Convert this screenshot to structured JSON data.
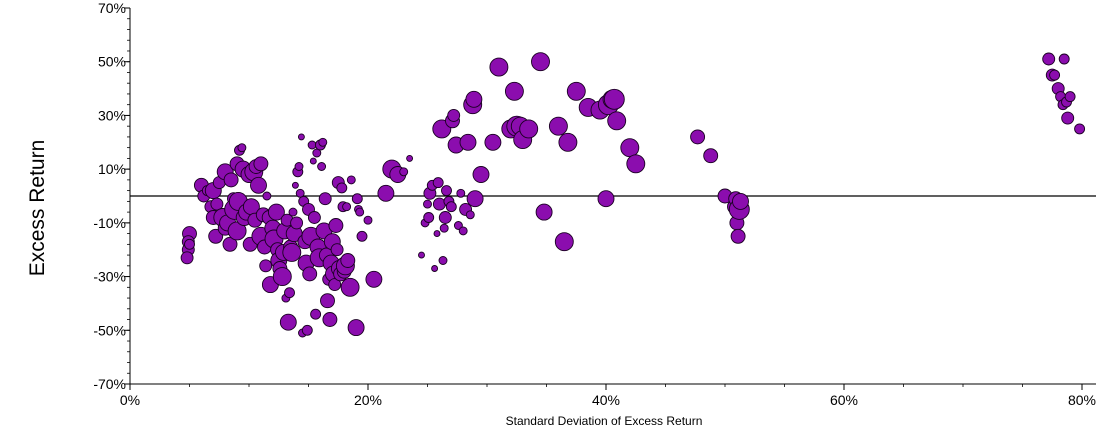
{
  "chart_data": {
    "type": "scatter",
    "title": "",
    "xlabel": "Standard Deviation of Excess Return",
    "ylabel": "Excess Return",
    "xlim": [
      0,
      0.8
    ],
    "ylim": [
      -0.7,
      0.7
    ],
    "x_ticks": [
      {
        "value": 0,
        "label": "0%"
      },
      {
        "value": 0.2,
        "label": "20%"
      },
      {
        "value": 0.4,
        "label": "40%"
      },
      {
        "value": 0.6,
        "label": "60%"
      },
      {
        "value": 0.8,
        "label": "80%"
      }
    ],
    "y_ticks": [
      {
        "value": -0.7,
        "label": "-70%"
      },
      {
        "value": -0.5,
        "label": "-50%"
      },
      {
        "value": -0.3,
        "label": "-30%"
      },
      {
        "value": -0.1,
        "label": "-10%"
      },
      {
        "value": 0.1,
        "label": "10%"
      },
      {
        "value": 0.3,
        "label": "30%"
      },
      {
        "value": 0.5,
        "label": "50%"
      },
      {
        "value": 0.7,
        "label": "70%"
      }
    ],
    "grid": false,
    "reference_line_y": 0,
    "marker_color": "#8B0DAE",
    "marker_edge_color": "#1a0022",
    "points": [
      [
        0.05,
        -0.14,
        7
      ],
      [
        0.049,
        -0.17,
        6
      ],
      [
        0.049,
        -0.2,
        6
      ],
      [
        0.048,
        -0.23,
        6
      ],
      [
        0.05,
        -0.18,
        5
      ],
      [
        0.06,
        0.04,
        7
      ],
      [
        0.062,
        0.0,
        6
      ],
      [
        0.065,
        0.02,
        5
      ],
      [
        0.068,
        -0.04,
        6
      ],
      [
        0.07,
        0.02,
        8
      ],
      [
        0.07,
        -0.08,
        7
      ],
      [
        0.072,
        -0.15,
        7
      ],
      [
        0.073,
        -0.03,
        6
      ],
      [
        0.075,
        0.05,
        6
      ],
      [
        0.078,
        -0.08,
        9
      ],
      [
        0.08,
        -0.12,
        7
      ],
      [
        0.08,
        0.09,
        8
      ],
      [
        0.082,
        -0.1,
        8
      ],
      [
        0.084,
        -0.18,
        7
      ],
      [
        0.085,
        0.06,
        7
      ],
      [
        0.087,
        -0.01,
        6
      ],
      [
        0.088,
        -0.05,
        10
      ],
      [
        0.09,
        0.12,
        7
      ],
      [
        0.09,
        -0.13,
        9
      ],
      [
        0.091,
        -0.02,
        9
      ],
      [
        0.092,
        0.17,
        5
      ],
      [
        0.094,
        0.18,
        4
      ],
      [
        0.095,
        0.1,
        8
      ],
      [
        0.096,
        -0.08,
        8
      ],
      [
        0.098,
        -0.06,
        8
      ],
      [
        0.1,
        0.08,
        8
      ],
      [
        0.101,
        -0.18,
        7
      ],
      [
        0.102,
        -0.04,
        8
      ],
      [
        0.104,
        0.09,
        9
      ],
      [
        0.105,
        -0.09,
        7
      ],
      [
        0.106,
        0.11,
        7
      ],
      [
        0.108,
        0.04,
        8
      ],
      [
        0.11,
        -0.15,
        9
      ],
      [
        0.11,
        0.12,
        7
      ],
      [
        0.112,
        -0.07,
        7
      ],
      [
        0.113,
        -0.19,
        7
      ],
      [
        0.114,
        -0.26,
        6
      ],
      [
        0.115,
        0.0,
        4
      ],
      [
        0.117,
        -0.08,
        7
      ],
      [
        0.118,
        -0.33,
        8
      ],
      [
        0.12,
        -0.12,
        8
      ],
      [
        0.121,
        -0.16,
        9
      ],
      [
        0.123,
        -0.06,
        8
      ],
      [
        0.124,
        -0.2,
        7
      ],
      [
        0.125,
        -0.24,
        8
      ],
      [
        0.126,
        -0.27,
        7
      ],
      [
        0.128,
        -0.3,
        9
      ],
      [
        0.129,
        -0.21,
        8
      ],
      [
        0.13,
        -0.13,
        8
      ],
      [
        0.131,
        -0.38,
        4
      ],
      [
        0.132,
        -0.09,
        6
      ],
      [
        0.133,
        -0.47,
        8
      ],
      [
        0.134,
        -0.36,
        5
      ],
      [
        0.135,
        -0.19,
        7
      ],
      [
        0.136,
        -0.21,
        9
      ],
      [
        0.137,
        -0.06,
        4
      ],
      [
        0.138,
        -0.14,
        8
      ],
      [
        0.139,
        0.04,
        3
      ],
      [
        0.14,
        -0.1,
        6
      ],
      [
        0.141,
        0.09,
        5
      ],
      [
        0.142,
        0.11,
        4
      ],
      [
        0.143,
        0.01,
        4
      ],
      [
        0.144,
        0.22,
        3
      ],
      [
        0.145,
        -0.51,
        4
      ],
      [
        0.146,
        -0.02,
        5
      ],
      [
        0.147,
        -0.17,
        7
      ],
      [
        0.148,
        -0.25,
        8
      ],
      [
        0.149,
        -0.5,
        5
      ],
      [
        0.15,
        -0.05,
        6
      ],
      [
        0.151,
        -0.29,
        7
      ],
      [
        0.152,
        -0.15,
        9
      ],
      [
        0.153,
        0.19,
        4
      ],
      [
        0.154,
        0.13,
        3
      ],
      [
        0.155,
        -0.08,
        6
      ],
      [
        0.156,
        -0.44,
        5
      ],
      [
        0.157,
        0.16,
        4
      ],
      [
        0.158,
        -0.19,
        8
      ],
      [
        0.159,
        -0.23,
        9
      ],
      [
        0.16,
        0.19,
        5
      ],
      [
        0.161,
        0.11,
        4
      ],
      [
        0.162,
        0.2,
        4
      ],
      [
        0.163,
        -0.13,
        8
      ],
      [
        0.164,
        -0.01,
        6
      ],
      [
        0.165,
        -0.22,
        7
      ],
      [
        0.166,
        -0.39,
        7
      ],
      [
        0.167,
        -0.31,
        6
      ],
      [
        0.168,
        -0.46,
        7
      ],
      [
        0.169,
        -0.25,
        8
      ],
      [
        0.17,
        -0.17,
        8
      ],
      [
        0.171,
        -0.29,
        8
      ],
      [
        0.172,
        -0.33,
        6
      ],
      [
        0.173,
        -0.11,
        7
      ],
      [
        0.174,
        -0.2,
        6
      ],
      [
        0.175,
        0.05,
        6
      ],
      [
        0.176,
        -0.27,
        8
      ],
      [
        0.177,
        -0.29,
        7
      ],
      [
        0.178,
        0.03,
        5
      ],
      [
        0.179,
        -0.04,
        5
      ],
      [
        0.18,
        -0.28,
        7
      ],
      [
        0.181,
        -0.26,
        9
      ],
      [
        0.182,
        -0.04,
        4
      ],
      [
        0.183,
        -0.24,
        7
      ],
      [
        0.185,
        -0.34,
        9
      ],
      [
        0.186,
        0.06,
        4
      ],
      [
        0.19,
        -0.49,
        8
      ],
      [
        0.191,
        -0.01,
        5
      ],
      [
        0.192,
        -0.05,
        4
      ],
      [
        0.193,
        -0.06,
        4
      ],
      [
        0.195,
        -0.15,
        5
      ],
      [
        0.2,
        -0.09,
        4
      ],
      [
        0.205,
        -0.31,
        8
      ],
      [
        0.215,
        0.01,
        8
      ],
      [
        0.22,
        0.1,
        9
      ],
      [
        0.225,
        0.08,
        8
      ],
      [
        0.23,
        0.09,
        4
      ],
      [
        0.235,
        0.14,
        3
      ],
      [
        0.245,
        -0.22,
        3
      ],
      [
        0.248,
        -0.1,
        4
      ],
      [
        0.25,
        -0.03,
        4
      ],
      [
        0.251,
        -0.08,
        5
      ],
      [
        0.252,
        0.01,
        6
      ],
      [
        0.254,
        0.04,
        5
      ],
      [
        0.256,
        -0.27,
        3
      ],
      [
        0.258,
        -0.14,
        3
      ],
      [
        0.259,
        0.05,
        5
      ],
      [
        0.26,
        -0.03,
        6
      ],
      [
        0.262,
        0.25,
        9
      ],
      [
        0.263,
        -0.24,
        4
      ],
      [
        0.264,
        -0.12,
        4
      ],
      [
        0.265,
        -0.08,
        6
      ],
      [
        0.266,
        0.02,
        5
      ],
      [
        0.268,
        -0.02,
        5
      ],
      [
        0.27,
        -0.04,
        5
      ],
      [
        0.271,
        0.28,
        7
      ],
      [
        0.272,
        0.3,
        6
      ],
      [
        0.274,
        0.19,
        8
      ],
      [
        0.276,
        -0.11,
        4
      ],
      [
        0.278,
        0.01,
        4
      ],
      [
        0.28,
        -0.13,
        4
      ],
      [
        0.282,
        -0.05,
        6
      ],
      [
        0.284,
        0.2,
        8
      ],
      [
        0.286,
        -0.07,
        4
      ],
      [
        0.288,
        0.34,
        9
      ],
      [
        0.289,
        0.36,
        8
      ],
      [
        0.29,
        -0.01,
        8
      ],
      [
        0.295,
        0.08,
        8
      ],
      [
        0.305,
        0.2,
        8
      ],
      [
        0.31,
        0.48,
        9
      ],
      [
        0.32,
        0.25,
        9
      ],
      [
        0.323,
        0.39,
        9
      ],
      [
        0.325,
        0.26,
        10
      ],
      [
        0.328,
        0.26,
        9
      ],
      [
        0.33,
        0.21,
        9
      ],
      [
        0.335,
        0.25,
        9
      ],
      [
        0.345,
        0.5,
        9
      ],
      [
        0.348,
        -0.06,
        8
      ],
      [
        0.36,
        0.26,
        9
      ],
      [
        0.365,
        -0.17,
        9
      ],
      [
        0.368,
        0.2,
        9
      ],
      [
        0.375,
        0.39,
        9
      ],
      [
        0.385,
        0.33,
        9
      ],
      [
        0.395,
        0.32,
        9
      ],
      [
        0.4,
        -0.01,
        8
      ],
      [
        0.402,
        0.34,
        10
      ],
      [
        0.405,
        0.36,
        9
      ],
      [
        0.407,
        0.36,
        10
      ],
      [
        0.409,
        0.28,
        9
      ],
      [
        0.42,
        0.18,
        9
      ],
      [
        0.425,
        0.12,
        9
      ],
      [
        0.477,
        0.22,
        7
      ],
      [
        0.488,
        0.15,
        7
      ],
      [
        0.5,
        0.0,
        7
      ],
      [
        0.508,
        -0.04,
        7
      ],
      [
        0.509,
        -0.01,
        7
      ],
      [
        0.51,
        -0.1,
        7
      ],
      [
        0.511,
        -0.15,
        7
      ],
      [
        0.512,
        -0.05,
        10
      ],
      [
        0.513,
        -0.02,
        8
      ],
      [
        0.772,
        0.51,
        6
      ],
      [
        0.775,
        0.45,
        6
      ],
      [
        0.777,
        0.45,
        5
      ],
      [
        0.78,
        0.4,
        6
      ],
      [
        0.782,
        0.37,
        5
      ],
      [
        0.784,
        0.34,
        5
      ],
      [
        0.785,
        0.51,
        5
      ],
      [
        0.787,
        0.35,
        5
      ],
      [
        0.788,
        0.29,
        6
      ],
      [
        0.79,
        0.37,
        5
      ],
      [
        0.798,
        0.25,
        5
      ]
    ]
  }
}
